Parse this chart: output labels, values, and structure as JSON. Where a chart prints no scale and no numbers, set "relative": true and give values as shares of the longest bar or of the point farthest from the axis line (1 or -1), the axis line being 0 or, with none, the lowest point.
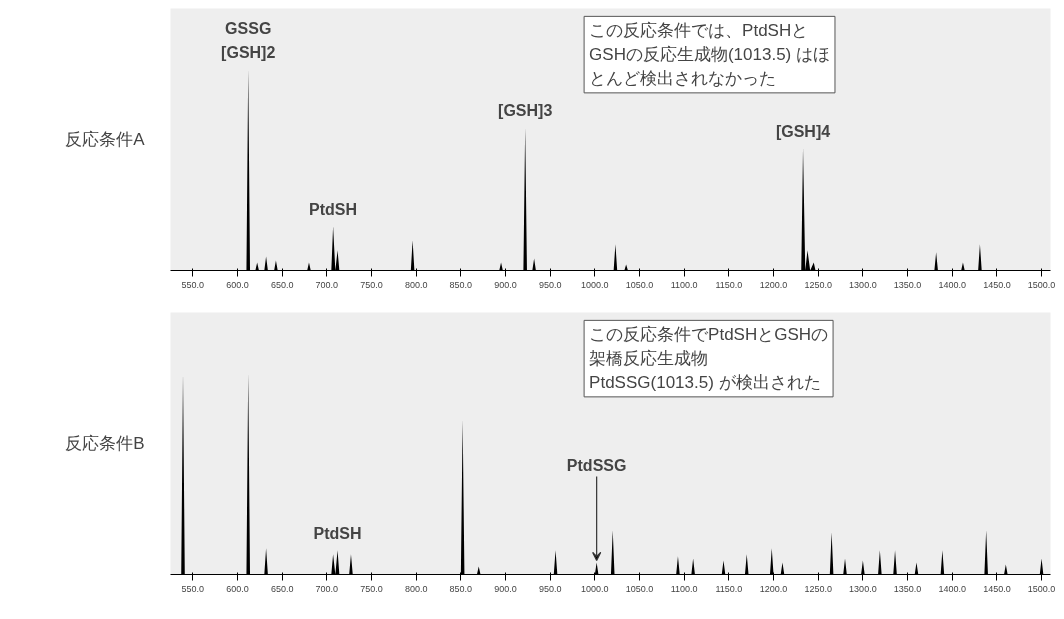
{
  "chart_data": [
    {
      "type": "area",
      "ylabel": "反応条件A",
      "relative": true,
      "xlim": [
        525,
        1510
      ],
      "xticks": [
        {
          "value": 550,
          "label": "550.0"
        },
        {
          "value": 600,
          "label": "600.0"
        },
        {
          "value": 650,
          "label": "650.0"
        },
        {
          "value": 700,
          "label": "700.0"
        },
        {
          "value": 750,
          "label": "750.0"
        },
        {
          "value": 800,
          "label": "800.0"
        },
        {
          "value": 850,
          "label": "850.0"
        },
        {
          "value": 900,
          "label": "900.0"
        },
        {
          "value": 950,
          "label": "950.0"
        },
        {
          "value": 1000,
          "label": "1000.0"
        },
        {
          "value": 1050,
          "label": "1050.0"
        },
        {
          "value": 1100,
          "label": "1100.0"
        },
        {
          "value": 1150,
          "label": "1150.0"
        },
        {
          "value": 1200,
          "label": "1200.0"
        },
        {
          "value": 1250,
          "label": "1250.0"
        },
        {
          "value": 1300,
          "label": "1300.0"
        },
        {
          "value": 1350,
          "label": "1350.0"
        },
        {
          "value": 1400,
          "label": "1400.0"
        },
        {
          "value": 1450,
          "label": "1450.0"
        },
        {
          "value": 1500,
          "label": "1500.0"
        }
      ],
      "series": [
        {
          "color": "#000000",
          "x": [
            530,
            610,
            612,
            614,
            620,
            622,
            624,
            630,
            632,
            634,
            641,
            643,
            645,
            678,
            680,
            682,
            705,
            707,
            709.5,
            712,
            714,
            794,
            796,
            798,
            893,
            895,
            897,
            920,
            922,
            924,
            930,
            932,
            934,
            1021,
            1023,
            1025,
            1033,
            1035,
            1037,
            1231,
            1233,
            1235.5,
            1238,
            1241,
            1245,
            1247,
            1380,
            1382,
            1384,
            1410,
            1412,
            1414,
            1429,
            1431,
            1433,
            1510
          ],
          "values": [
            0,
            0,
            1.0,
            0,
            0,
            0.04,
            0,
            0,
            0.07,
            0,
            0,
            0.05,
            0,
            0,
            0.04,
            0,
            0,
            0.22,
            0,
            0.1,
            0,
            0,
            0.15,
            0,
            0,
            0.04,
            0,
            0,
            0.71,
            0,
            0,
            0.06,
            0,
            0,
            0.13,
            0,
            0,
            0.03,
            0,
            0,
            0.61,
            0,
            0.1,
            0,
            0.04,
            0,
            0,
            0.09,
            0,
            0,
            0.04,
            0,
            0,
            0.13,
            0,
            0
          ]
        }
      ],
      "annotations": [
        {
          "text": "GSSG",
          "x": 612,
          "y": 1.0
        },
        {
          "text": "[GSH]2",
          "x": 612,
          "y": 1.0
        },
        {
          "text": "PtdSH",
          "x": 707,
          "y": 0.22
        },
        {
          "text": "[GSH]3",
          "x": 922,
          "y": 0.71
        },
        {
          "text": "[GSH]4",
          "x": 1233,
          "y": 0.61
        },
        "この反応条件では、PtdSHとGSHの反応生成物(1013.5) はほとんど検出されなかった"
      ]
    },
    {
      "type": "area",
      "ylabel": "反応条件B",
      "relative": true,
      "xlim": [
        525,
        1510
      ],
      "xticks": [
        {
          "value": 550,
          "label": "550.0"
        },
        {
          "value": 600,
          "label": "600.0"
        },
        {
          "value": 650,
          "label": "650.0"
        },
        {
          "value": 700,
          "label": "700.0"
        },
        {
          "value": 750,
          "label": "750.0"
        },
        {
          "value": 800,
          "label": "800.0"
        },
        {
          "value": 850,
          "label": "850.0"
        },
        {
          "value": 900,
          "label": "900.0"
        },
        {
          "value": 950,
          "label": "950.0"
        },
        {
          "value": 1000,
          "label": "1000.0"
        },
        {
          "value": 1050,
          "label": "1050.0"
        },
        {
          "value": 1100,
          "label": "1100.0"
        },
        {
          "value": 1150,
          "label": "1150.0"
        },
        {
          "value": 1200,
          "label": "1200.0"
        },
        {
          "value": 1250,
          "label": "1250.0"
        },
        {
          "value": 1300,
          "label": "1300.0"
        },
        {
          "value": 1350,
          "label": "1350.0"
        },
        {
          "value": 1400,
          "label": "1400.0"
        },
        {
          "value": 1450,
          "label": "1450.0"
        },
        {
          "value": 1500,
          "label": "1500.0"
        }
      ],
      "series": [
        {
          "color": "#000000",
          "x": [
            525,
            537,
            539,
            541,
            610,
            612,
            614,
            630,
            632,
            634,
            705,
            707,
            709.5,
            712,
            714,
            725,
            727,
            729,
            850,
            852,
            854,
            868,
            870,
            872,
            954,
            956,
            958,
            1000,
            1002,
            1004,
            1018,
            1020,
            1022,
            1091,
            1093,
            1095,
            1108,
            1110,
            1112,
            1142,
            1144,
            1146,
            1168,
            1170,
            1172,
            1196,
            1198,
            1200,
            1208,
            1210,
            1212,
            1263,
            1265,
            1267,
            1278,
            1280,
            1282,
            1298,
            1300,
            1302,
            1317,
            1319,
            1321,
            1334,
            1336,
            1338,
            1358,
            1360,
            1362,
            1387,
            1389,
            1391,
            1436,
            1438,
            1440,
            1458,
            1460,
            1462,
            1498,
            1500,
            1502,
            1510
          ],
          "values": [
            0,
            0,
            1.0,
            0,
            0,
            1.0,
            0,
            0,
            0.13,
            0,
            0,
            0.1,
            0,
            0.12,
            0,
            0,
            0.1,
            0,
            0,
            0.77,
            0,
            0,
            0.04,
            0,
            0,
            0.12,
            0,
            0,
            0.06,
            0,
            0,
            0.22,
            0,
            0,
            0.09,
            0,
            0,
            0.08,
            0,
            0,
            0.07,
            0,
            0,
            0.1,
            0,
            0,
            0.13,
            0,
            0,
            0.06,
            0,
            0,
            0.21,
            0,
            0,
            0.08,
            0,
            0,
            0.07,
            0,
            0,
            0.12,
            0,
            0,
            0.12,
            0,
            0,
            0.06,
            0,
            0,
            0.12,
            0,
            0,
            0.22,
            0,
            0,
            0.05,
            0,
            0,
            0.08,
            0,
            0
          ]
        }
      ],
      "annotations": [
        {
          "text": "PtdSH",
          "x": 712,
          "y": 0.12
        },
        {
          "text": "PtdSSG",
          "x": 1002,
          "y": 0.06
        },
        "この反応条件でPtdSHとGSHの架橋反応生成物PtdSSG(1013.5) が検出された"
      ]
    }
  ]
}
